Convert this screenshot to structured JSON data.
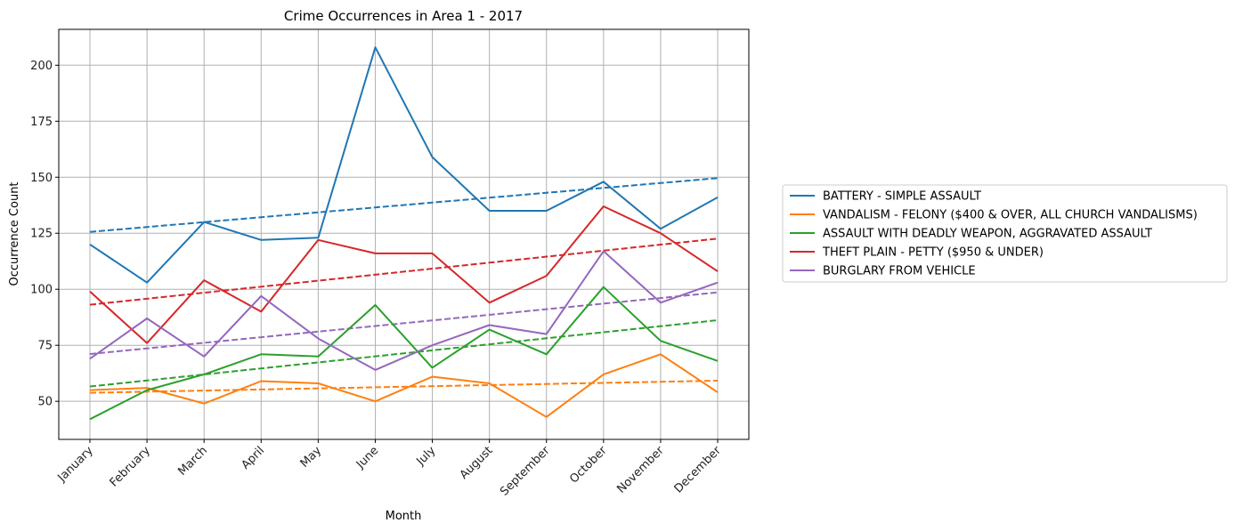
{
  "chart_data": {
    "type": "line",
    "title": "Crime Occurrences in Area 1 - 2017",
    "xlabel": "Month",
    "ylabel": "Occurrence Count",
    "categories": [
      "January",
      "February",
      "March",
      "April",
      "May",
      "June",
      "July",
      "August",
      "September",
      "October",
      "November",
      "December"
    ],
    "ylim": [
      33,
      216
    ],
    "yticks": [
      50,
      75,
      100,
      125,
      150,
      175,
      200
    ],
    "grid": true,
    "legend_position": "center-right outside",
    "series": [
      {
        "name": "BATTERY - SIMPLE ASSAULT",
        "color": "#1f77b4",
        "values": [
          120,
          103,
          130,
          122,
          123,
          208,
          159,
          135,
          135,
          148,
          127,
          141
        ],
        "trend": [
          125.6,
          149.6
        ]
      },
      {
        "name": "VANDALISM - FELONY ($400 & OVER, ALL CHURCH VANDALISMS)",
        "color": "#ff7f0e",
        "values": [
          55,
          56,
          49,
          59,
          58,
          50,
          61,
          58,
          43,
          62,
          71,
          54
        ],
        "trend": [
          53.8,
          59.2
        ]
      },
      {
        "name": "ASSAULT WITH DEADLY WEAPON, AGGRAVATED ASSAULT",
        "color": "#2ca02c",
        "values": [
          42,
          55,
          62,
          71,
          70,
          93,
          65,
          82,
          71,
          101,
          77,
          68
        ],
        "trend": [
          56.6,
          86.2
        ]
      },
      {
        "name": "THEFT PLAIN - PETTY ($950 & UNDER)",
        "color": "#d62728",
        "values": [
          99,
          76,
          104,
          90,
          122,
          116,
          116,
          94,
          106,
          137,
          125,
          108
        ],
        "trend": [
          93.1,
          122.6
        ]
      },
      {
        "name": "BURGLARY FROM VEHICLE",
        "color": "#9467bd",
        "values": [
          69,
          87,
          70,
          97,
          78,
          64,
          75,
          84,
          80,
          117,
          94,
          103
        ],
        "trend": [
          71.1,
          98.6
        ]
      }
    ]
  }
}
